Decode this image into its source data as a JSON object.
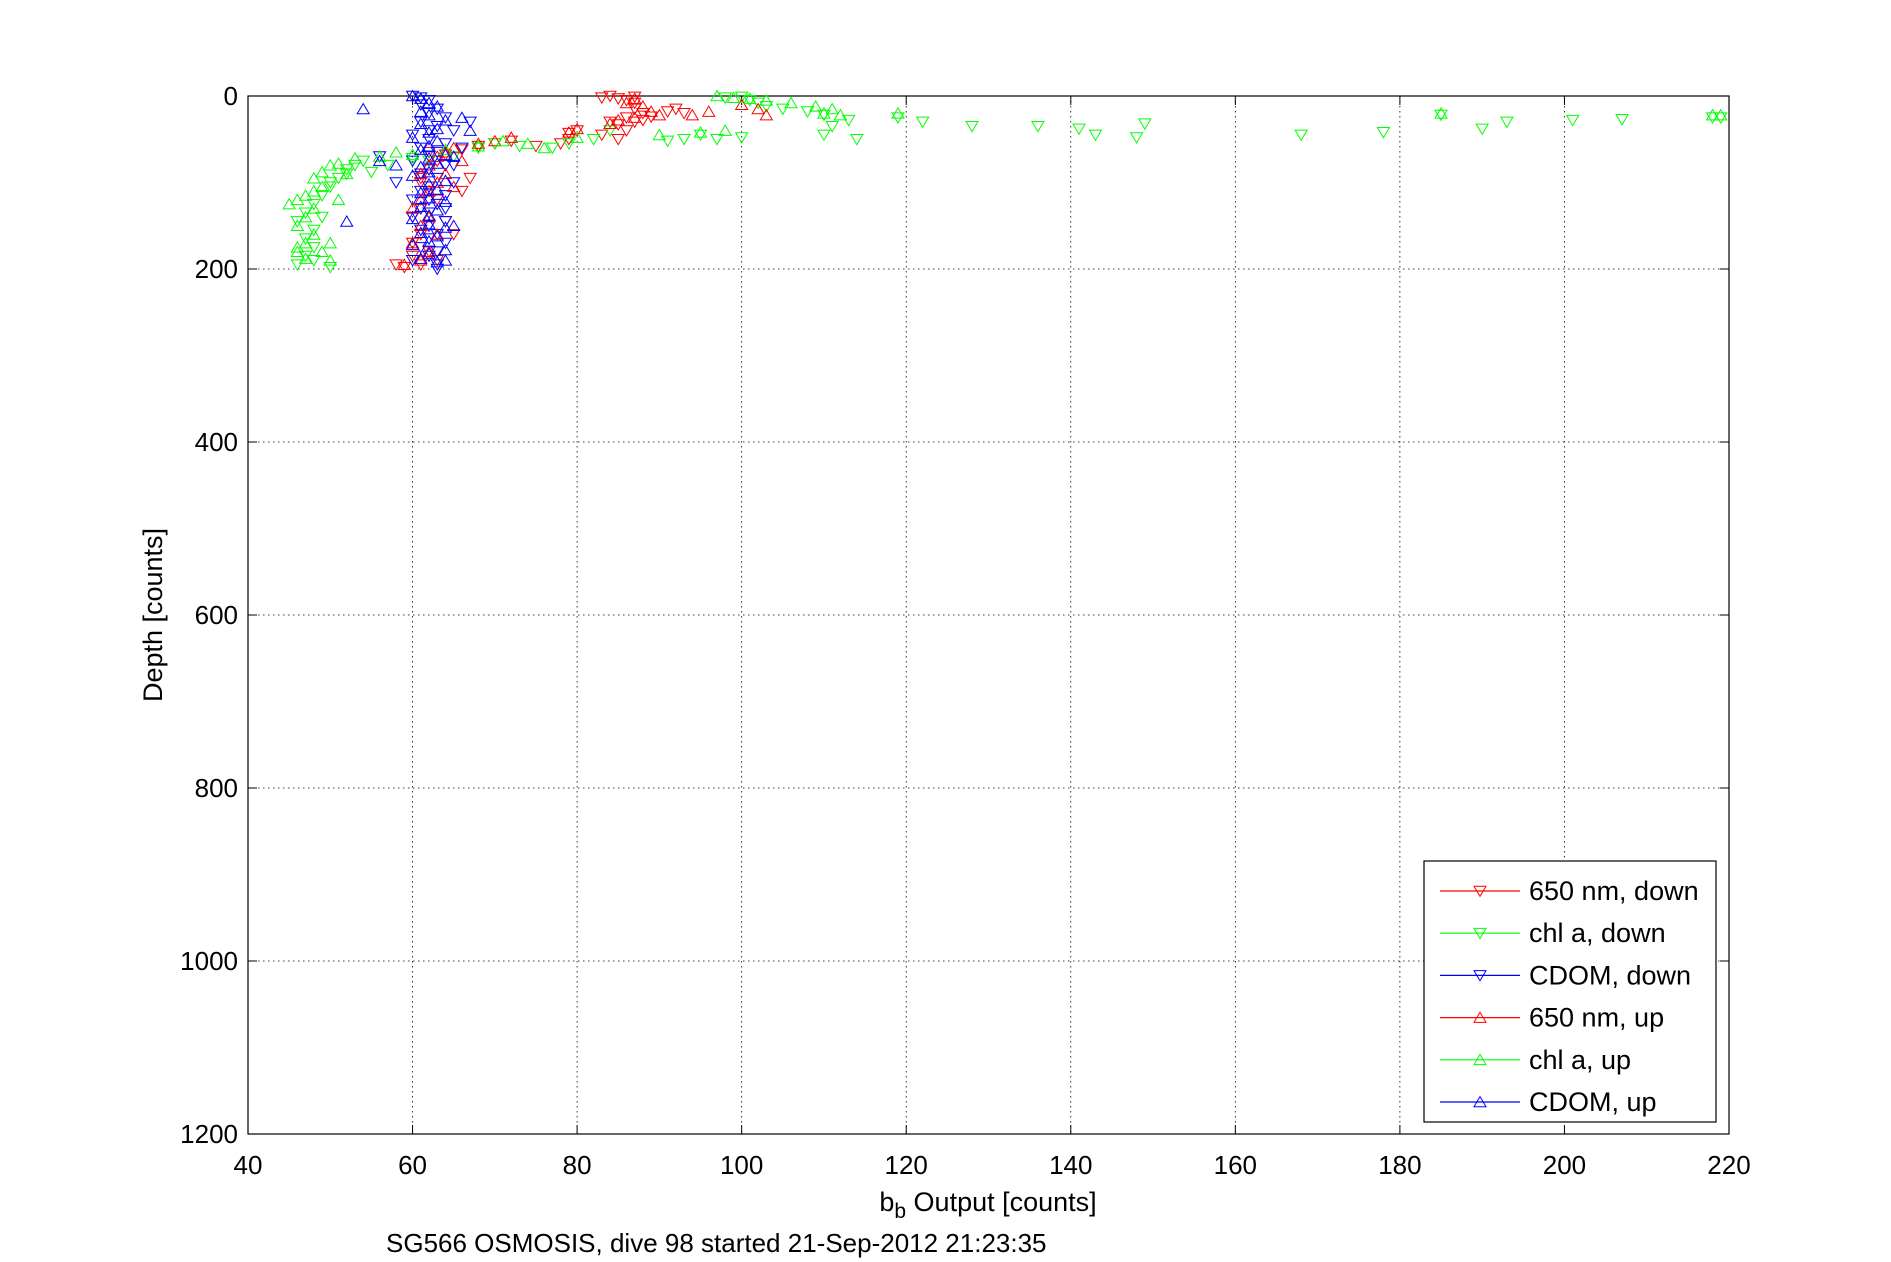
{
  "chart_data": {
    "type": "scatter",
    "title": "",
    "xlabel": "b_b Output [counts]",
    "xlabel_main": "b",
    "xlabel_sub": "b",
    "xlabel_rest": " Output [counts]",
    "ylabel": "Depth [counts]",
    "caption": "SG566 OSMOSIS, dive 98 started 21-Sep-2012 21:23:35",
    "xlim": [
      40,
      220
    ],
    "ylim": [
      0,
      1200
    ],
    "y_reversed": true,
    "xticks": [
      40,
      60,
      80,
      100,
      120,
      140,
      160,
      180,
      200,
      220
    ],
    "yticks": [
      0,
      200,
      400,
      600,
      800,
      1000,
      1200
    ],
    "grid": true,
    "legend_position": "bottom-right",
    "series": [
      {
        "name": "650 nm, down",
        "color": "#ff0000",
        "marker": "triangle-down",
        "points": [
          [
            83,
            2
          ],
          [
            84,
            0
          ],
          [
            85,
            3
          ],
          [
            86,
            5
          ],
          [
            87,
            1
          ],
          [
            87,
            8
          ],
          [
            87,
            15
          ],
          [
            88,
            20
          ],
          [
            86,
            25
          ],
          [
            87,
            30
          ],
          [
            85,
            33
          ],
          [
            88,
            28
          ],
          [
            89,
            24
          ],
          [
            91,
            18
          ],
          [
            92,
            15
          ],
          [
            93,
            20
          ],
          [
            84,
            30
          ],
          [
            86,
            40
          ],
          [
            85,
            50
          ],
          [
            83,
            45
          ],
          [
            80,
            40
          ],
          [
            79,
            43
          ],
          [
            79,
            50
          ],
          [
            78,
            55
          ],
          [
            75,
            58
          ],
          [
            72,
            52
          ],
          [
            70,
            55
          ],
          [
            68,
            58
          ],
          [
            66,
            62
          ],
          [
            64,
            68
          ],
          [
            63,
            75
          ],
          [
            62,
            85
          ],
          [
            61,
            95
          ],
          [
            62,
            110
          ],
          [
            63,
            120
          ],
          [
            61,
            130
          ],
          [
            60,
            140
          ],
          [
            62,
            150
          ],
          [
            61,
            160
          ],
          [
            60,
            170
          ],
          [
            62,
            180
          ],
          [
            63,
            190
          ],
          [
            61,
            195
          ],
          [
            59,
            198
          ],
          [
            58,
            195
          ],
          [
            60,
            185
          ],
          [
            64,
            145
          ],
          [
            65,
            160
          ],
          [
            66,
            110
          ],
          [
            67,
            95
          ],
          [
            62,
            65
          ],
          [
            61,
            100
          ]
        ]
      },
      {
        "name": "chl a, down",
        "color": "#00ff00",
        "marker": "triangle-down",
        "points": [
          [
            98,
            2
          ],
          [
            100,
            1
          ],
          [
            101,
            5
          ],
          [
            102,
            8
          ],
          [
            103,
            12
          ],
          [
            105,
            15
          ],
          [
            108,
            18
          ],
          [
            110,
            22
          ],
          [
            113,
            28
          ],
          [
            111,
            35
          ],
          [
            114,
            50
          ],
          [
            110,
            45
          ],
          [
            100,
            48
          ],
          [
            97,
            50
          ],
          [
            95,
            45
          ],
          [
            93,
            50
          ],
          [
            91,
            52
          ],
          [
            84,
            40
          ],
          [
            82,
            50
          ],
          [
            79,
            55
          ],
          [
            77,
            60
          ],
          [
            73,
            58
          ],
          [
            70,
            55
          ],
          [
            68,
            60
          ],
          [
            65,
            70
          ],
          [
            62,
            75
          ],
          [
            60,
            72
          ],
          [
            57,
            80
          ],
          [
            54,
            75
          ],
          [
            52,
            85
          ],
          [
            51,
            95
          ],
          [
            50,
            105
          ],
          [
            49,
            115
          ],
          [
            48,
            125
          ],
          [
            47,
            135
          ],
          [
            46,
            145
          ],
          [
            48,
            155
          ],
          [
            47,
            165
          ],
          [
            48,
            175
          ],
          [
            47,
            185
          ],
          [
            48,
            190
          ],
          [
            46,
            195
          ],
          [
            50,
            198
          ],
          [
            49,
            140
          ],
          [
            50,
            100
          ],
          [
            119,
            25
          ],
          [
            122,
            30
          ],
          [
            128,
            35
          ],
          [
            136,
            35
          ],
          [
            141,
            38
          ],
          [
            143,
            45
          ],
          [
            148,
            48
          ],
          [
            149,
            32
          ],
          [
            168,
            45
          ],
          [
            178,
            42
          ],
          [
            185,
            22
          ],
          [
            190,
            38
          ],
          [
            193,
            30
          ],
          [
            201,
            28
          ],
          [
            207,
            27
          ],
          [
            218,
            25
          ],
          [
            219,
            25
          ],
          [
            52,
            90
          ],
          [
            53,
            80
          ],
          [
            55,
            88
          ]
        ]
      },
      {
        "name": "CDOM, down",
        "color": "#0000ff",
        "marker": "triangle-down",
        "points": [
          [
            60,
            0
          ],
          [
            61,
            2
          ],
          [
            62,
            5
          ],
          [
            61,
            10
          ],
          [
            63,
            15
          ],
          [
            62,
            20
          ],
          [
            64,
            25
          ],
          [
            61,
            30
          ],
          [
            63,
            35
          ],
          [
            62,
            40
          ],
          [
            60,
            45
          ],
          [
            62,
            50
          ],
          [
            64,
            55
          ],
          [
            61,
            60
          ],
          [
            63,
            65
          ],
          [
            62,
            70
          ],
          [
            60,
            75
          ],
          [
            64,
            80
          ],
          [
            62,
            85
          ],
          [
            61,
            90
          ],
          [
            63,
            95
          ],
          [
            65,
            100
          ],
          [
            62,
            105
          ],
          [
            61,
            110
          ],
          [
            64,
            115
          ],
          [
            62,
            120
          ],
          [
            63,
            125
          ],
          [
            61,
            130
          ],
          [
            62,
            135
          ],
          [
            60,
            140
          ],
          [
            64,
            145
          ],
          [
            62,
            150
          ],
          [
            61,
            155
          ],
          [
            63,
            160
          ],
          [
            62,
            165
          ],
          [
            64,
            170
          ],
          [
            61,
            175
          ],
          [
            63,
            180
          ],
          [
            62,
            185
          ],
          [
            60,
            190
          ],
          [
            63,
            195
          ],
          [
            65,
            40
          ],
          [
            66,
            60
          ],
          [
            65,
            80
          ],
          [
            67,
            30
          ],
          [
            56,
            70
          ],
          [
            58,
            100
          ],
          [
            60,
            120
          ],
          [
            64,
            130
          ],
          [
            63,
            200
          ]
        ]
      },
      {
        "name": "650 nm, up",
        "color": "#ff0000",
        "marker": "triangle-up",
        "points": [
          [
            87,
            3
          ],
          [
            86,
            8
          ],
          [
            88,
            12
          ],
          [
            89,
            18
          ],
          [
            90,
            22
          ],
          [
            87,
            25
          ],
          [
            85,
            28
          ],
          [
            84,
            32
          ],
          [
            80,
            38
          ],
          [
            79,
            42
          ],
          [
            72,
            48
          ],
          [
            70,
            52
          ],
          [
            68,
            55
          ],
          [
            65,
            60
          ],
          [
            64,
            65
          ],
          [
            63,
            70
          ],
          [
            62,
            80
          ],
          [
            61,
            90
          ],
          [
            63,
            100
          ],
          [
            62,
            110
          ],
          [
            61,
            120
          ],
          [
            60,
            130
          ],
          [
            62,
            140
          ],
          [
            61,
            150
          ],
          [
            63,
            160
          ],
          [
            60,
            170
          ],
          [
            62,
            180
          ],
          [
            61,
            190
          ],
          [
            59,
            195
          ],
          [
            100,
            10
          ],
          [
            102,
            15
          ],
          [
            103,
            22
          ],
          [
            96,
            18
          ],
          [
            94,
            22
          ],
          [
            66,
            75
          ],
          [
            64,
            90
          ],
          [
            65,
            105
          ]
        ]
      },
      {
        "name": "chl a, up",
        "color": "#00ff00",
        "marker": "triangle-up",
        "points": [
          [
            97,
            0
          ],
          [
            99,
            2
          ],
          [
            101,
            3
          ],
          [
            103,
            5
          ],
          [
            106,
            8
          ],
          [
            109,
            12
          ],
          [
            111,
            15
          ],
          [
            110,
            20
          ],
          [
            112,
            22
          ],
          [
            119,
            20
          ],
          [
            98,
            40
          ],
          [
            95,
            42
          ],
          [
            90,
            45
          ],
          [
            80,
            48
          ],
          [
            76,
            60
          ],
          [
            74,
            55
          ],
          [
            71,
            52
          ],
          [
            68,
            58
          ],
          [
            64,
            62
          ],
          [
            60,
            68
          ],
          [
            58,
            65
          ],
          [
            56,
            70
          ],
          [
            53,
            72
          ],
          [
            51,
            78
          ],
          [
            50,
            80
          ],
          [
            49,
            88
          ],
          [
            48,
            95
          ],
          [
            49,
            105
          ],
          [
            47,
            115
          ],
          [
            46,
            120
          ],
          [
            45,
            125
          ],
          [
            48,
            130
          ],
          [
            47,
            140
          ],
          [
            46,
            150
          ],
          [
            48,
            160
          ],
          [
            47,
            170
          ],
          [
            46,
            180
          ],
          [
            47,
            188
          ],
          [
            49,
            180
          ],
          [
            50,
            170
          ],
          [
            48,
            110
          ],
          [
            51,
            120
          ],
          [
            52,
            90
          ],
          [
            185,
            20
          ],
          [
            218,
            22
          ],
          [
            219,
            22
          ],
          [
            50,
            190
          ],
          [
            46,
            175
          ]
        ]
      },
      {
        "name": "CDOM, up",
        "color": "#0000ff",
        "marker": "triangle-up",
        "points": [
          [
            54,
            15
          ],
          [
            60,
            0
          ],
          [
            61,
            3
          ],
          [
            62,
            8
          ],
          [
            63,
            12
          ],
          [
            61,
            18
          ],
          [
            62,
            22
          ],
          [
            64,
            28
          ],
          [
            61,
            32
          ],
          [
            63,
            38
          ],
          [
            62,
            42
          ],
          [
            60,
            48
          ],
          [
            63,
            52
          ],
          [
            62,
            58
          ],
          [
            61,
            62
          ],
          [
            64,
            68
          ],
          [
            62,
            72
          ],
          [
            63,
            78
          ],
          [
            61,
            82
          ],
          [
            62,
            88
          ],
          [
            60,
            92
          ],
          [
            64,
            98
          ],
          [
            62,
            102
          ],
          [
            63,
            108
          ],
          [
            61,
            112
          ],
          [
            62,
            118
          ],
          [
            64,
            122
          ],
          [
            61,
            128
          ],
          [
            63,
            132
          ],
          [
            62,
            138
          ],
          [
            60,
            142
          ],
          [
            62,
            148
          ],
          [
            64,
            152
          ],
          [
            61,
            158
          ],
          [
            63,
            162
          ],
          [
            62,
            168
          ],
          [
            60,
            172
          ],
          [
            64,
            178
          ],
          [
            62,
            182
          ],
          [
            61,
            188
          ],
          [
            63,
            192
          ],
          [
            52,
            145
          ],
          [
            56,
            75
          ],
          [
            58,
            80
          ],
          [
            66,
            25
          ],
          [
            67,
            40
          ],
          [
            65,
            70
          ],
          [
            65,
            150
          ],
          [
            64,
            190
          ]
        ]
      }
    ]
  }
}
